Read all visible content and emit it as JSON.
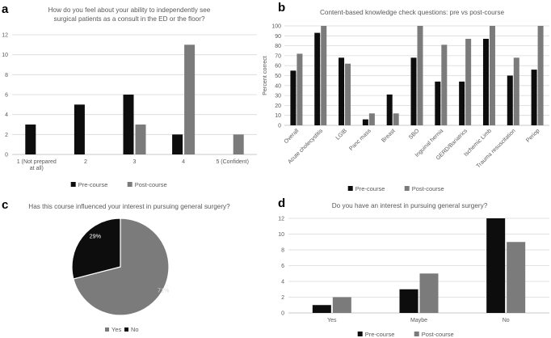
{
  "panels": {
    "a": {
      "letter": "a"
    },
    "b": {
      "letter": "b"
    },
    "c": {
      "letter": "c"
    },
    "d": {
      "letter": "d"
    }
  },
  "colors": {
    "pre": "#0d0d0d",
    "post": "#7b7b7b",
    "grid": "#d9d9d9",
    "text": "#595959",
    "yes": "#7b7b7b",
    "no": "#0d0d0d"
  },
  "chart_data": [
    {
      "id": "a",
      "type": "bar",
      "title_lines": [
        "How do you feel about your ability to independently see",
        "surgical patients as a consult in the ED or the floor?"
      ],
      "categories": [
        [
          "1 (Not prepared",
          "at all)"
        ],
        [
          "2"
        ],
        [
          "3"
        ],
        [
          "4"
        ],
        [
          "5 (Confident)"
        ]
      ],
      "series": [
        {
          "name": "Pre-course",
          "values": [
            3,
            5,
            6,
            2,
            0
          ]
        },
        {
          "name": "Post-course",
          "values": [
            0,
            0,
            3,
            11,
            2
          ]
        }
      ],
      "ylim": [
        0,
        12
      ],
      "yticks": [
        "0",
        "2",
        "4",
        "6",
        "8",
        "10",
        "12"
      ],
      "grid": true,
      "legend": "bottom"
    },
    {
      "id": "b",
      "type": "bar",
      "title_lines": [
        "Content-based knowledge check questions: pre vs post-course"
      ],
      "ylabel": "Percent correct",
      "categories": [
        "Overall",
        "Acute cholecystitis",
        "LGIB",
        "Panc mass",
        "Breast",
        "SBO",
        "Inguinal hernia",
        "GERD/Bariatrics",
        "Ischemic Limb",
        "Trauma resuscitation",
        "Periop"
      ],
      "series": [
        {
          "name": "Pre-course",
          "values": [
            55,
            93,
            68,
            6,
            31,
            68,
            44,
            44,
            87,
            50,
            56
          ]
        },
        {
          "name": "Post-course",
          "values": [
            72,
            100,
            62,
            12,
            12,
            100,
            81,
            87,
            100,
            68,
            100
          ]
        }
      ],
      "ylim": [
        0,
        100
      ],
      "yticks": [
        "0",
        "10",
        "20",
        "30",
        "40",
        "50",
        "60",
        "70",
        "80",
        "90",
        "100"
      ],
      "grid": true,
      "legend": "bottom"
    },
    {
      "id": "c",
      "type": "pie",
      "title_lines": [
        "Has this course influenced your interest in pursuing general surgery?"
      ],
      "slices": [
        {
          "name": "Yes",
          "value": 71,
          "label": "71%"
        },
        {
          "name": "No",
          "value": 29,
          "label": "29%"
        }
      ],
      "legend": "bottom"
    },
    {
      "id": "d",
      "type": "bar",
      "title_lines": [
        "Do you have an interest in pursuing general surgery?"
      ],
      "categories": [
        [
          "Yes"
        ],
        [
          "Maybe"
        ],
        [
          "No"
        ]
      ],
      "series": [
        {
          "name": "Pre-course",
          "values": [
            1,
            3,
            12
          ]
        },
        {
          "name": "Post-course",
          "values": [
            2,
            5,
            9
          ]
        }
      ],
      "ylim": [
        0,
        12
      ],
      "yticks": [
        "0",
        "2",
        "4",
        "6",
        "8",
        "10",
        "12"
      ],
      "grid": true,
      "legend": "bottom"
    }
  ]
}
